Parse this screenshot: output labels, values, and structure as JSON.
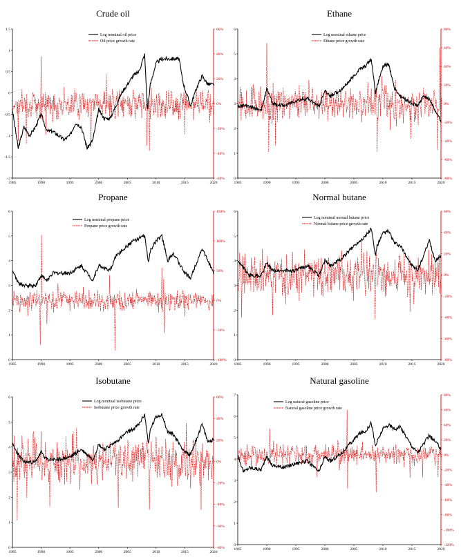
{
  "colors": {
    "price": "#000000",
    "growth": "#d40000",
    "axis": "#000000"
  },
  "chart_data": [
    {
      "type": "line",
      "title": "Crude oil",
      "x_ticks": [
        "1985",
        "1990",
        "1995",
        "2000",
        "2005",
        "2010",
        "2015",
        "2020"
      ],
      "xlim": [
        1985,
        2020
      ],
      "left_ticks": [
        "1.5",
        "1",
        "0.5",
        "0",
        "-0.5",
        "-1",
        "-1.5",
        "-2"
      ],
      "ylim_left": [
        -2,
        1.5
      ],
      "right_ticks": [
        "60%",
        "40%",
        "20%",
        "0%",
        "-20%",
        "-40%",
        "-60%"
      ],
      "ylim_right": [
        -60,
        60
      ],
      "legend": [
        "Log nominal oil price",
        "Oil price growth rate"
      ],
      "series": [
        {
          "name": "Log nominal oil price",
          "axis": "left",
          "x": [
            1985,
            1986,
            1987,
            1988,
            1989,
            1990,
            1991,
            1992,
            1993,
            1994,
            1995,
            1996,
            1997,
            1998,
            1999,
            2000,
            2001,
            2002,
            2003,
            2004,
            2005,
            2006,
            2007,
            2008,
            2008.5,
            2009,
            2010,
            2011,
            2012,
            2013,
            2014,
            2014.6,
            2015,
            2016,
            2017,
            2018,
            2019,
            2020
          ],
          "y": [
            -0.4,
            -1.3,
            -0.8,
            -1.0,
            -0.8,
            -0.5,
            -0.9,
            -0.9,
            -1.0,
            -1.1,
            -1.0,
            -0.7,
            -0.8,
            -1.3,
            -1.1,
            -0.4,
            -0.6,
            -0.6,
            -0.3,
            0.0,
            0.2,
            0.4,
            0.5,
            0.9,
            -0.4,
            0.2,
            0.7,
            0.8,
            0.8,
            0.8,
            0.8,
            0.3,
            0.1,
            -0.3,
            0.1,
            0.4,
            0.2,
            0.2
          ]
        },
        {
          "name": "Oil price growth rate",
          "axis": "right",
          "noise": 7,
          "spikes": [
            [
              1986,
              -30
            ],
            [
              1990,
              38
            ],
            [
              1990.8,
              -25
            ],
            [
              1998.7,
              -35
            ],
            [
              2008.8,
              -38
            ],
            [
              2015,
              -25
            ],
            [
              2020.2,
              -55
            ]
          ]
        }
      ]
    },
    {
      "type": "line",
      "title": "Ethane",
      "x_ticks": [
        "1985",
        "1990",
        "1995",
        "2000",
        "2005",
        "2010",
        "2015",
        "2020"
      ],
      "xlim": [
        1985,
        2020
      ],
      "left_ticks": [
        "6",
        "5",
        "4",
        "3",
        "2",
        "1",
        "0"
      ],
      "ylim_left": [
        0,
        6
      ],
      "right_ticks": [
        "80%",
        "60%",
        "40%",
        "20%",
        "0%",
        "-20%",
        "-40%",
        "-60%",
        "-80%"
      ],
      "ylim_right": [
        -80,
        80
      ],
      "legend": [
        "Log nominal ethane price",
        "Ethane price growth rate"
      ],
      "series": [
        {
          "name": "Log nominal ethane price",
          "axis": "left",
          "x": [
            1985,
            1987,
            1989,
            1990,
            1991,
            1993,
            1995,
            1997,
            1999,
            2000,
            2001,
            2003,
            2005,
            2006,
            2007,
            2008,
            2008.7,
            2009,
            2010,
            2011,
            2012,
            2013,
            2015,
            2016,
            2017,
            2018,
            2019,
            2020
          ],
          "y": [
            2.9,
            2.9,
            2.7,
            3.6,
            3.0,
            2.9,
            3.1,
            3.2,
            2.9,
            3.5,
            3.3,
            3.6,
            4.1,
            4.4,
            4.5,
            4.8,
            3.4,
            3.7,
            4.5,
            4.6,
            3.6,
            3.3,
            3.0,
            2.9,
            3.3,
            3.2,
            2.7,
            2.3
          ]
        },
        {
          "name": "Ethane price growth rate",
          "axis": "right",
          "noise": 12,
          "spikes": [
            [
              1990,
              65
            ],
            [
              1990.3,
              -52
            ],
            [
              1991.5,
              -45
            ],
            [
              2009,
              -52
            ],
            [
              2014.8,
              -38
            ],
            [
              2019.4,
              -50
            ],
            [
              2019.8,
              60
            ]
          ]
        }
      ]
    },
    {
      "type": "line",
      "title": "Propane",
      "x_ticks": [
        "1985",
        "1990",
        "1995",
        "2000",
        "2005",
        "2010",
        "2015",
        "2020"
      ],
      "xlim": [
        1985,
        2020
      ],
      "left_ticks": [
        "6",
        "5",
        "4",
        "3",
        "2",
        "1",
        "0"
      ],
      "ylim_left": [
        0,
        6
      ],
      "right_ticks": [
        "150%",
        "100%",
        "50%",
        "0%",
        "-50%",
        "-100%"
      ],
      "ylim_right": [
        -100,
        150
      ],
      "legend": [
        "Log nominal propane price",
        "Propane price growth rate"
      ],
      "series": [
        {
          "name": "Log nominal propane price",
          "axis": "left",
          "x": [
            1985,
            1986,
            1987,
            1989,
            1990,
            1991,
            1992,
            1995,
            1997,
            1999,
            2000,
            2001,
            2002,
            2003,
            2005,
            2006,
            2008,
            2008.7,
            2009,
            2010,
            2011,
            2012,
            2013,
            2015,
            2016,
            2018,
            2019,
            2020
          ],
          "y": [
            3.6,
            3.1,
            3.0,
            3.0,
            3.4,
            3.2,
            3.5,
            3.5,
            3.8,
            3.2,
            3.8,
            3.7,
            3.6,
            4.2,
            4.6,
            4.8,
            5.0,
            3.9,
            4.4,
            4.8,
            5.0,
            4.0,
            4.3,
            3.5,
            3.3,
            4.5,
            4.0,
            3.5
          ]
        },
        {
          "name": "Propane price growth rate",
          "axis": "right",
          "noise": 10,
          "spikes": [
            [
              1989.8,
              -75
            ],
            [
              1990.1,
              110
            ],
            [
              1991,
              -40
            ],
            [
              2002.8,
              -85
            ],
            [
              2011,
              55
            ],
            [
              2011.4,
              -55
            ]
          ]
        }
      ]
    },
    {
      "type": "line",
      "title": "Normal butane",
      "x_ticks": [
        "1985",
        "1990",
        "1995",
        "2000",
        "2005",
        "2010",
        "2015",
        "2020"
      ],
      "xlim": [
        1985,
        2020
      ],
      "left_ticks": [
        "6",
        "5",
        "4",
        "3",
        "2",
        "1",
        "0"
      ],
      "ylim_left": [
        0,
        6
      ],
      "right_ticks": [
        "60%",
        "40%",
        "20%",
        "0%",
        "-20%",
        "-40%",
        "-60%",
        "-80%"
      ],
      "ylim_right": [
        -80,
        60
      ],
      "legend": [
        "Log nominal normal butane price",
        "Normal butane price growth rate"
      ],
      "series": [
        {
          "name": "Log nominal normal butane price",
          "axis": "left",
          "x": [
            1985,
            1986,
            1987,
            1989,
            1990,
            1991,
            1993,
            1995,
            1997,
            1999,
            2000,
            2001,
            2003,
            2005,
            2006,
            2007,
            2008,
            2008.7,
            2009,
            2010,
            2011,
            2012,
            2013,
            2015,
            2016,
            2018,
            2019,
            2020
          ],
          "y": [
            4.0,
            3.7,
            3.4,
            3.4,
            3.9,
            3.6,
            3.6,
            3.6,
            3.8,
            3.4,
            4.0,
            3.8,
            4.1,
            4.6,
            4.8,
            5.0,
            5.3,
            4.2,
            4.6,
            5.1,
            5.2,
            4.7,
            4.6,
            3.8,
            3.6,
            4.8,
            4.0,
            4.2
          ]
        },
        {
          "name": "Normal butane price growth rate",
          "axis": "right",
          "noise": 12,
          "spikes": [
            [
              1985.7,
              -40
            ],
            [
              1991,
              -38
            ],
            [
              2008.7,
              -42
            ],
            [
              2014.7,
              -35
            ],
            [
              2020.2,
              -62
            ]
          ]
        }
      ]
    },
    {
      "type": "line",
      "title": "Isobutane",
      "x_ticks": [
        "1985",
        "1990",
        "1995",
        "2000",
        "2005",
        "2010",
        "2015",
        "2020"
      ],
      "xlim": [
        1985,
        2020
      ],
      "left_ticks": [
        "6",
        "5",
        "4",
        "3",
        "2",
        "1",
        "0"
      ],
      "ylim_left": [
        0,
        6
      ],
      "right_ticks": [
        "60%",
        "40%",
        "20%",
        "0%",
        "-20%",
        "-40%",
        "-60%",
        "-80%"
      ],
      "ylim_right": [
        -80,
        60
      ],
      "legend": [
        "Log nominal isobutane price",
        "Isobutane price growth rate"
      ],
      "series": [
        {
          "name": "Log nominal isobutane price",
          "axis": "left",
          "x": [
            1985,
            1986,
            1987,
            1989,
            1990,
            1991,
            1993,
            1995,
            1997,
            1999,
            2000,
            2001,
            2003,
            2005,
            2006,
            2007,
            2008,
            2008.7,
            2009,
            2010,
            2011,
            2012,
            2013,
            2015,
            2016,
            2018,
            2019,
            2020
          ],
          "y": [
            4.1,
            3.7,
            3.4,
            3.4,
            3.8,
            3.5,
            3.5,
            3.6,
            3.9,
            3.5,
            4.1,
            3.9,
            4.2,
            4.6,
            4.7,
            4.9,
            5.3,
            4.1,
            4.7,
            5.2,
            5.3,
            4.6,
            4.5,
            3.8,
            3.7,
            4.9,
            4.2,
            4.3
          ]
        },
        {
          "name": "Isobutane price growth rate",
          "axis": "right",
          "noise": 13,
          "spikes": [
            [
              1985.8,
              -55
            ],
            [
              1990,
              28
            ],
            [
              1991.5,
              -42
            ],
            [
              2008.8,
              -45
            ],
            [
              2017.8,
              -45
            ],
            [
              2020.2,
              -70
            ]
          ]
        }
      ]
    },
    {
      "type": "line",
      "title": "Natural gasoline",
      "x_ticks": [
        "1985",
        "1990",
        "1995",
        "2000",
        "2005",
        "2010",
        "2015",
        "2020"
      ],
      "xlim": [
        1985,
        2020
      ],
      "left_ticks": [
        "7",
        "6",
        "5",
        "4",
        "3",
        "2",
        "1",
        "0"
      ],
      "ylim_left": [
        0,
        7
      ],
      "right_ticks": [
        "80%",
        "60%",
        "40%",
        "20%",
        "0%",
        "-20%",
        "-40%",
        "-60%",
        "-80%",
        "-100%",
        "-120%"
      ],
      "ylim_right": [
        -120,
        80
      ],
      "legend": [
        "Log natural gasoline price",
        "Natural gasoline price growth rate"
      ],
      "series": [
        {
          "name": "Log natural gasoline price",
          "axis": "left",
          "x": [
            1985,
            1986,
            1987,
            1989,
            1990,
            1991,
            1993,
            1995,
            1997,
            1999,
            2000,
            2001,
            2003,
            2005,
            2006,
            2007,
            2008,
            2008.7,
            2009,
            2010,
            2011,
            2012,
            2013,
            2015,
            2016,
            2018,
            2019,
            2020
          ],
          "y": [
            4.2,
            3.4,
            3.6,
            3.5,
            4.1,
            3.7,
            3.6,
            3.8,
            3.9,
            3.4,
            4.1,
            3.9,
            4.3,
            4.9,
            5.2,
            5.3,
            5.7,
            4.6,
            4.8,
            5.4,
            5.6,
            5.4,
            5.5,
            4.6,
            4.3,
            5.1,
            4.8,
            4.5
          ]
        },
        {
          "name": "Natural gasoline price growth rate",
          "axis": "right",
          "noise": 8,
          "spikes": [
            [
              1990.5,
              35
            ],
            [
              1998.7,
              -30
            ],
            [
              2003.8,
              60
            ],
            [
              2003.9,
              -45
            ],
            [
              2008.8,
              -50
            ],
            [
              2016.8,
              -30
            ],
            [
              2019.5,
              -30
            ],
            [
              2020.2,
              -95
            ]
          ]
        }
      ]
    }
  ]
}
